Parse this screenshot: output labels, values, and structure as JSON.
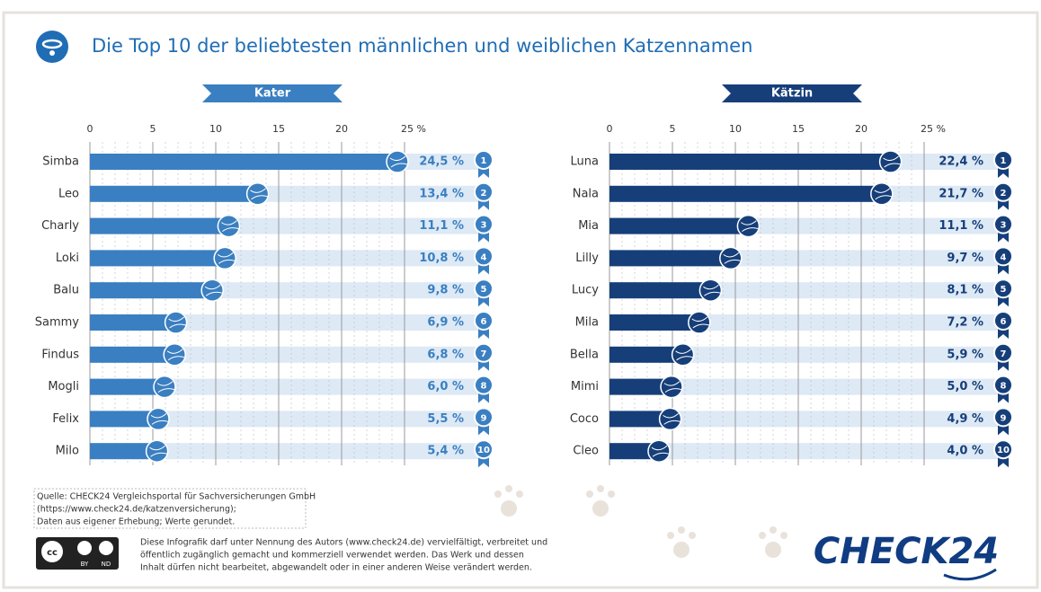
{
  "header": {
    "title": "Die Top 10 der beliebtesten männlichen und weiblichen Katzennamen"
  },
  "chart_data": [
    {
      "type": "bar",
      "title": "Kater",
      "color": "#3a7fc1",
      "categories": [
        "Simba",
        "Leo",
        "Charly",
        "Loki",
        "Balu",
        "Sammy",
        "Findus",
        "Mogli",
        "Felix",
        "Milo"
      ],
      "values": [
        24.5,
        13.4,
        11.1,
        10.8,
        9.8,
        6.9,
        6.8,
        6.0,
        5.5,
        5.4
      ],
      "value_labels": [
        "24,5 %",
        "13,4 %",
        "11,1 %",
        "10,8 %",
        "9,8 %",
        "6,9 %",
        "6,8 %",
        "6,0 %",
        "5,5 %",
        "5,4 %"
      ],
      "ranks": [
        1,
        2,
        3,
        4,
        5,
        6,
        7,
        8,
        9,
        10
      ],
      "xlim": [
        0,
        25
      ],
      "xticks": [
        0,
        5,
        10,
        15,
        20,
        {
          "value": 25,
          "label": "25 %"
        }
      ],
      "grid": true
    },
    {
      "type": "bar",
      "title": "Kätzin",
      "color": "#163f7a",
      "categories": [
        "Luna",
        "Nala",
        "Mia",
        "Lilly",
        "Lucy",
        "Mila",
        "Bella",
        "Mimi",
        "Coco",
        "Cleo"
      ],
      "values": [
        22.4,
        21.7,
        11.1,
        9.7,
        8.1,
        7.2,
        5.9,
        5.0,
        4.9,
        4.0
      ],
      "value_labels": [
        "22,4 %",
        "21,7 %",
        "11,1 %",
        "9,7 %",
        "8,1 %",
        "7,2 %",
        "5,9 %",
        "5,0 %",
        "4,9 %",
        "4,0 %"
      ],
      "ranks": [
        1,
        2,
        3,
        4,
        5,
        6,
        7,
        8,
        9,
        10
      ],
      "xlim": [
        0,
        25
      ],
      "xticks": [
        0,
        5,
        10,
        15,
        20,
        {
          "value": 25,
          "label": "25 %"
        }
      ],
      "grid": true
    }
  ],
  "footer": {
    "source": [
      "Quelle: CHECK24 Vergleichsportal für Sachversicherungen GmbH",
      "(https://www.check24.de/katzenversicherung);",
      "Daten aus eigener Erhebung; Werte gerundet."
    ],
    "license": [
      "Diese Infografik darf unter Nennung des Autors (www.check24.de) vervielfältigt, verbreitet und",
      "öffentlich zugänglich gemacht und kommerziell verwendet werden. Das Werk und dessen",
      "Inhalt dürfen nicht bearbeitet, abgewandelt oder in einer anderen Weise verändert werden."
    ],
    "cc": [
      "BY",
      "ND"
    ],
    "logo": "CHECK24"
  }
}
